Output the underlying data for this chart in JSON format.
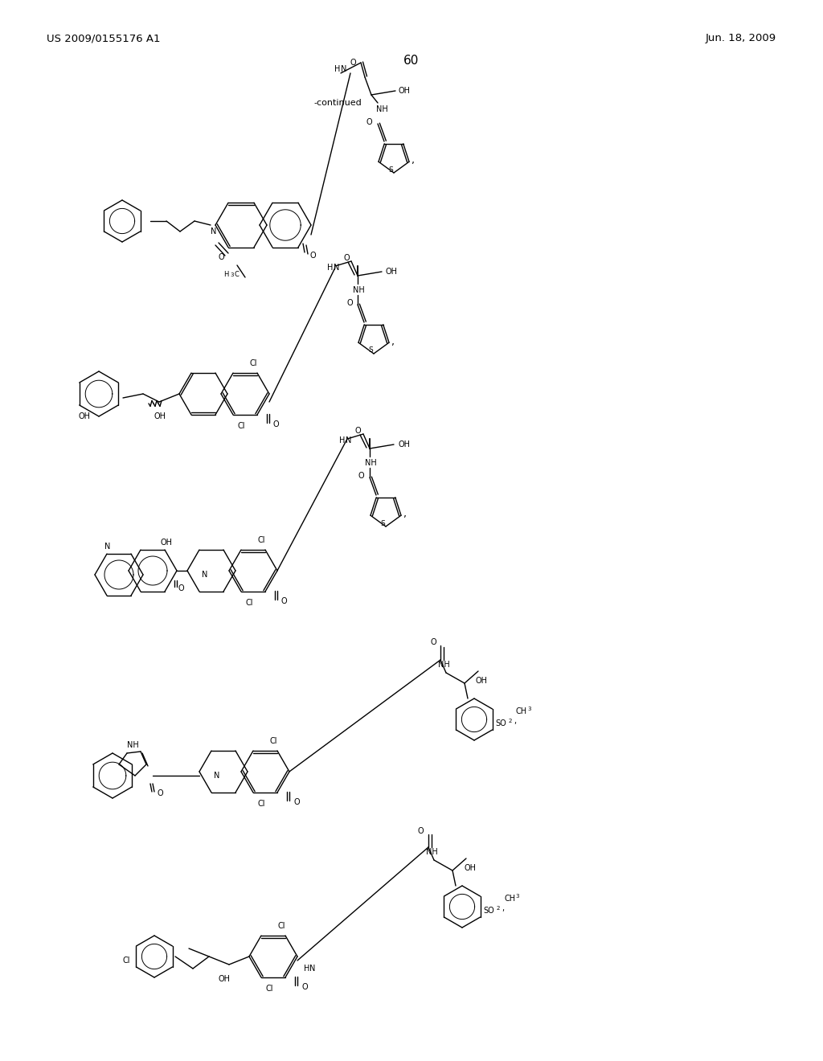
{
  "page_number": "60",
  "patent_number": "US 2009/0155176 A1",
  "patent_date": "Jun. 18, 2009",
  "continued_label": "-continued",
  "background_color": "#ffffff",
  "text_color": "#000000",
  "line_color": "#000000",
  "line_width": 1.0,
  "fig_width": 10.24,
  "fig_height": 13.2
}
